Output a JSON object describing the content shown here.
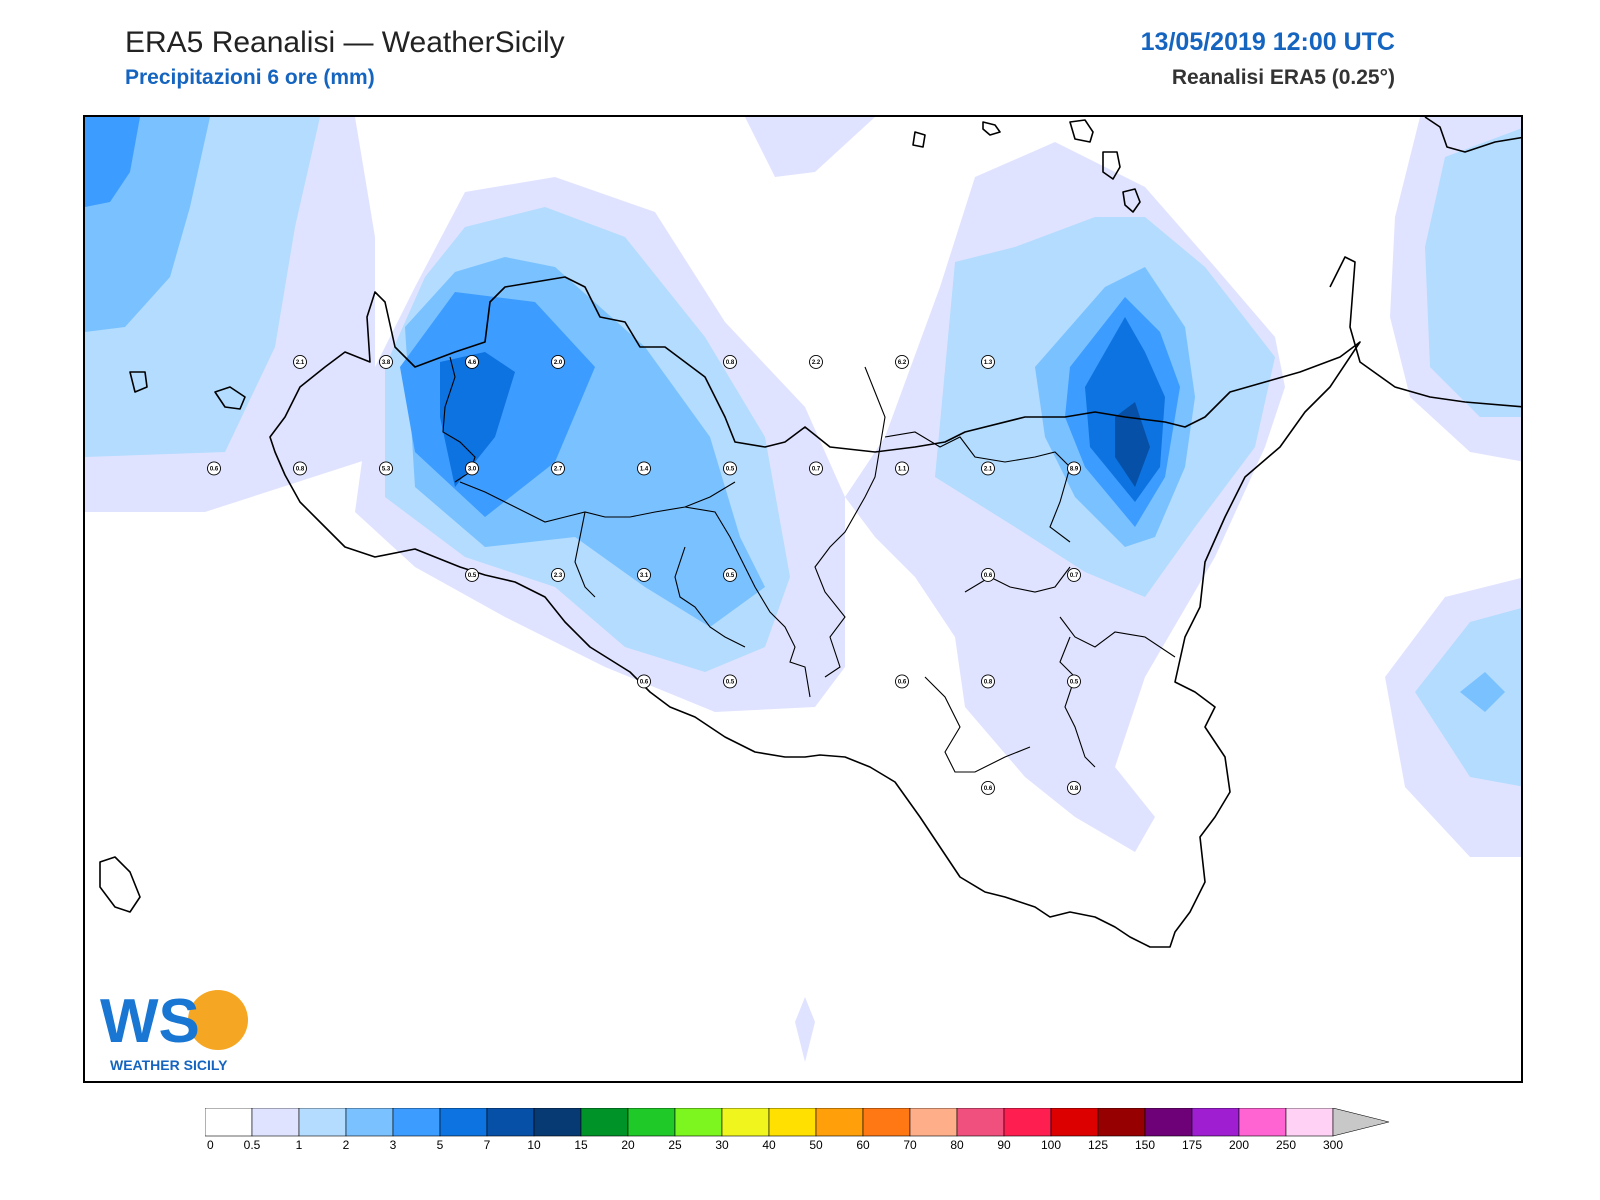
{
  "header": {
    "title": "ERA5 Reanalisi — WeatherSicily",
    "subtitle": "Precipitazioni 6 ore (mm)",
    "datetime": "13/05/2019 12:00 UTC",
    "model": "Reanalisi ERA5 (0.25°)"
  },
  "logo": {
    "letters": "WS",
    "text": "WEATHER SICILY"
  },
  "legend": {
    "ticks": [
      "0",
      "0.5",
      "1",
      "2",
      "3",
      "5",
      "7",
      "10",
      "15",
      "20",
      "25",
      "30",
      "40",
      "50",
      "60",
      "70",
      "80",
      "90",
      "100",
      "125",
      "150",
      "175",
      "200",
      "250",
      "300"
    ],
    "colors": [
      "#ffffff",
      "#e0e3ff",
      "#b3dcff",
      "#7ac1ff",
      "#3c9cff",
      "#0d73e0",
      "#0650a8",
      "#073a73",
      "#009428",
      "#1ec928",
      "#7df51e",
      "#f0f51e",
      "#ffe000",
      "#ffa00a",
      "#ff7814",
      "#ffae8a",
      "#f0507d",
      "#ff1e50",
      "#dc0000",
      "#960000",
      "#6e0078",
      "#a01ed2",
      "#ff64d2",
      "#ffd2f5"
    ],
    "extend_color": "#c8c8c8"
  },
  "map": {
    "point_values": [
      {
        "lon": 12.5,
        "lat": 38.25,
        "value": "2.1"
      },
      {
        "lon": 13.0,
        "lat": 38.25,
        "value": "3.8"
      },
      {
        "lon": 13.5,
        "lat": 38.25,
        "value": "4.6"
      },
      {
        "lon": 14.0,
        "lat": 38.25,
        "value": "2.0"
      },
      {
        "lon": 15.0,
        "lat": 38.25,
        "value": "0.8"
      },
      {
        "lon": 15.5,
        "lat": 38.25,
        "value": "2.2"
      },
      {
        "lon": 16.0,
        "lat": 38.25,
        "value": "6.2"
      },
      {
        "lon": 16.5,
        "lat": 38.25,
        "value": "1.3"
      },
      {
        "lon": 12.0,
        "lat": 37.75,
        "value": "0.6"
      },
      {
        "lon": 12.5,
        "lat": 37.75,
        "value": "0.8"
      },
      {
        "lon": 13.0,
        "lat": 37.75,
        "value": "5.3"
      },
      {
        "lon": 13.5,
        "lat": 37.75,
        "value": "3.0"
      },
      {
        "lon": 14.0,
        "lat": 37.75,
        "value": "2.7"
      },
      {
        "lon": 14.5,
        "lat": 37.75,
        "value": "1.4"
      },
      {
        "lon": 15.0,
        "lat": 37.75,
        "value": "0.5"
      },
      {
        "lon": 15.5,
        "lat": 37.75,
        "value": "0.7"
      },
      {
        "lon": 16.0,
        "lat": 37.75,
        "value": "1.1"
      },
      {
        "lon": 16.5,
        "lat": 37.75,
        "value": "2.1"
      },
      {
        "lon": 17.0,
        "lat": 37.75,
        "value": "8.9"
      },
      {
        "lon": 13.5,
        "lat": 37.25,
        "value": "0.5"
      },
      {
        "lon": 14.0,
        "lat": 37.25,
        "value": "2.3"
      },
      {
        "lon": 14.5,
        "lat": 37.25,
        "value": "3.1"
      },
      {
        "lon": 15.0,
        "lat": 37.25,
        "value": "0.5"
      },
      {
        "lon": 16.5,
        "lat": 37.25,
        "value": "0.6"
      },
      {
        "lon": 17.0,
        "lat": 37.25,
        "value": "0.7"
      },
      {
        "lon": 14.5,
        "lat": 36.75,
        "value": "0.6"
      },
      {
        "lon": 15.0,
        "lat": 36.75,
        "value": "0.5"
      },
      {
        "lon": 16.0,
        "lat": 36.75,
        "value": "0.6"
      },
      {
        "lon": 16.5,
        "lat": 36.75,
        "value": "0.8"
      },
      {
        "lon": 17.0,
        "lat": 36.75,
        "value": "0.5"
      },
      {
        "lon": 16.5,
        "lat": 36.25,
        "value": "0.6"
      },
      {
        "lon": 17.0,
        "lat": 36.25,
        "value": "0.8"
      }
    ]
  }
}
